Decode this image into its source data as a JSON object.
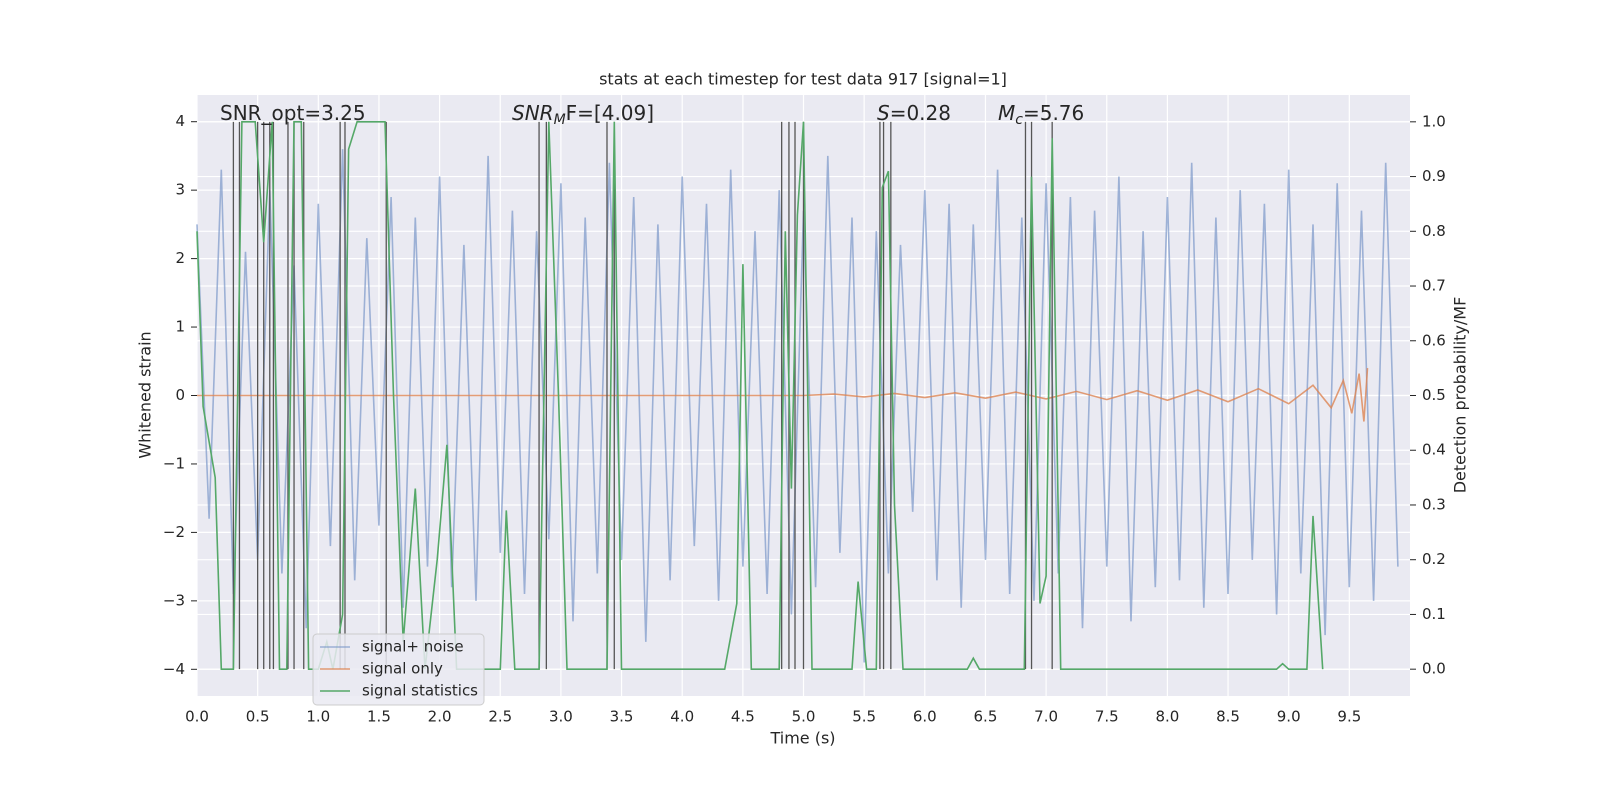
{
  "chart_data": {
    "type": "line",
    "title": "stats at each timestep for test data 917 [signal=1]",
    "xlabel": "Time (s)",
    "ylabel": "Whitened strain",
    "y2label": "Detection probability/MF",
    "xlim": [
      0,
      10
    ],
    "ylim": [
      -4.39,
      4.39
    ],
    "y2lim": [
      -0.049,
      1.049
    ],
    "xticks": [
      {
        "value": 0,
        "label": "0.0"
      },
      0.5,
      {
        "value": 1,
        "label": "1.0"
      },
      1.5,
      {
        "value": 2,
        "label": "2.0"
      },
      2.5,
      {
        "value": 3,
        "label": "3.0"
      },
      3.5,
      {
        "value": 4,
        "label": "4.0"
      },
      4.5,
      {
        "value": 5,
        "label": "5.0"
      },
      5.5,
      {
        "value": 6,
        "label": "6.0"
      },
      6.5,
      {
        "value": 7,
        "label": "7.0"
      },
      7.5,
      {
        "value": 8,
        "label": "8.0"
      },
      8.5,
      {
        "value": 9,
        "label": "9.0"
      },
      9.5
    ],
    "yticks": [
      {
        "value": -4,
        "label": "−4"
      },
      {
        "value": -3,
        "label": "−3"
      },
      {
        "value": -2,
        "label": "−2"
      },
      {
        "value": -1,
        "label": "−1"
      },
      0,
      1,
      2,
      3,
      4
    ],
    "y2ticks": [
      {
        "value": 0,
        "label": "0.0"
      },
      0.1,
      0.2,
      0.3,
      0.4,
      0.5,
      0.6,
      0.7,
      0.8,
      0.9,
      {
        "value": 1,
        "label": "1.0"
      }
    ],
    "grid": true,
    "legend": "lower left",
    "annotations": [
      {
        "text": "SNR_opt=3.25"
      },
      {
        "text": "SNR",
        "sub": "M",
        "rest": "F=[4.09]"
      },
      {
        "text": "S",
        "rest": "=0.28"
      },
      {
        "text": "M",
        "sub": "c",
        "rest": "=5.76"
      }
    ],
    "vlines": {
      "color": "#555555",
      "x": [
        0.3,
        0.35,
        0.5,
        0.55,
        0.6,
        0.63,
        0.75,
        0.8,
        0.88,
        1.18,
        1.22,
        1.56,
        2.82,
        2.88,
        3.38,
        3.44,
        4.82,
        4.88,
        4.93,
        5.0,
        5.63,
        5.66,
        5.72,
        6.83,
        6.88,
        7.05
      ]
    },
    "series": [
      {
        "name": "signal+ noise",
        "color": "#7b97c9",
        "opacity": 0.7,
        "x": [
          0.0,
          0.1,
          0.2,
          0.3,
          0.4,
          0.5,
          0.6,
          0.7,
          0.8,
          0.9,
          1.0,
          1.1,
          1.2,
          1.3,
          1.4,
          1.5,
          1.6,
          1.7,
          1.8,
          1.9,
          2.0,
          2.1,
          2.2,
          2.3,
          2.4,
          2.5,
          2.6,
          2.7,
          2.8,
          2.9,
          3.0,
          3.1,
          3.2,
          3.3,
          3.4,
          3.5,
          3.6,
          3.7,
          3.8,
          3.9,
          4.0,
          4.1,
          4.2,
          4.3,
          4.4,
          4.5,
          4.6,
          4.7,
          4.8,
          4.9,
          5.0,
          5.1,
          5.2,
          5.3,
          5.4,
          5.5,
          5.6,
          5.7,
          5.8,
          5.9,
          6.0,
          6.1,
          6.2,
          6.3,
          6.4,
          6.5,
          6.6,
          6.7,
          6.8,
          6.9,
          7.0,
          7.1,
          7.2,
          7.3,
          7.4,
          7.5,
          7.6,
          7.7,
          7.8,
          7.9,
          8.0,
          8.1,
          8.2,
          8.3,
          8.4,
          8.5,
          8.6,
          8.7,
          8.8,
          8.9,
          9.0,
          9.1,
          9.2,
          9.3,
          9.4,
          9.5,
          9.6,
          9.7,
          9.8,
          9.9
        ],
        "values": [
          2.5,
          -1.8,
          3.3,
          -2.9,
          2.1,
          -2.4,
          3.0,
          -2.6,
          1.9,
          -3.4,
          2.8,
          -2.2,
          3.6,
          -2.7,
          2.3,
          -1.9,
          2.9,
          -3.1,
          2.6,
          -2.5,
          3.2,
          -2.8,
          2.2,
          -3.0,
          3.5,
          -2.3,
          2.7,
          -2.9,
          2.4,
          -2.1,
          3.1,
          -3.3,
          2.6,
          -2.6,
          3.4,
          -2.4,
          2.9,
          -3.6,
          2.5,
          -2.7,
          3.2,
          -2.2,
          2.8,
          -3.0,
          3.3,
          -2.5,
          2.4,
          -2.9,
          3.0,
          -3.2,
          2.7,
          -2.8,
          3.5,
          -2.3,
          2.6,
          -3.9,
          2.4,
          -2.6,
          2.2,
          -1.7,
          3.0,
          -2.7,
          2.8,
          -3.1,
          2.5,
          -2.4,
          3.3,
          -2.9,
          2.6,
          -3.0,
          3.1,
          -2.6,
          2.9,
          -3.4,
          2.7,
          -2.5,
          3.2,
          -3.3,
          2.4,
          -2.8,
          2.9,
          -2.7,
          3.4,
          -3.1,
          2.6,
          -2.9,
          3.0,
          -2.4,
          2.8,
          -3.2,
          3.3,
          -2.6,
          2.5,
          -3.5,
          3.1,
          -2.8,
          2.7,
          -3.0,
          3.4,
          -2.5
        ]
      },
      {
        "name": "signal only",
        "color": "#dd8452",
        "opacity": 0.8,
        "x": [
          0,
          5,
          5.25,
          5.5,
          5.75,
          6,
          6.25,
          6.5,
          6.75,
          7,
          7.25,
          7.5,
          7.75,
          8,
          8.25,
          8.5,
          8.75,
          9,
          9.2,
          9.35,
          9.45,
          9.52,
          9.58,
          9.62,
          9.65
        ],
        "values": [
          0,
          0,
          0.02,
          -0.02,
          0.03,
          -0.03,
          0.04,
          -0.04,
          0.05,
          -0.05,
          0.06,
          -0.06,
          0.07,
          -0.07,
          0.08,
          -0.09,
          0.1,
          -0.12,
          0.15,
          -0.18,
          0.22,
          -0.26,
          0.32,
          -0.38,
          0.4
        ]
      },
      {
        "name": "signal statistics",
        "color": "#55a868",
        "opacity": 1,
        "axis": "y2",
        "x": [
          0,
          0.05,
          0.15,
          0.2,
          0.3,
          0.37,
          0.48,
          0.55,
          0.62,
          0.68,
          0.74,
          0.8,
          0.86,
          0.92,
          1.0,
          1.07,
          1.12,
          1.2,
          1.25,
          1.32,
          1.55,
          1.62,
          1.7,
          1.8,
          1.88,
          1.98,
          2.06,
          2.14,
          2.5,
          2.55,
          2.62,
          2.82,
          2.9,
          2.98,
          3.05,
          3.38,
          3.44,
          3.5,
          4.35,
          4.45,
          4.5,
          4.57,
          4.8,
          4.85,
          4.9,
          4.95,
          5.0,
          5.07,
          5.4,
          5.45,
          5.52,
          5.6,
          5.65,
          5.7,
          5.75,
          5.82,
          6.35,
          6.4,
          6.45,
          6.82,
          6.88,
          6.95,
          7.0,
          7.05,
          7.12,
          8.9,
          8.95,
          9.0,
          9.15,
          9.2,
          9.28
        ],
        "values": [
          0.8,
          0.48,
          0.35,
          0,
          0,
          1,
          1,
          0.78,
          1,
          0,
          0,
          1,
          1,
          0,
          0,
          0.05,
          0,
          0.1,
          0.95,
          1,
          1,
          0.5,
          0.05,
          0.33,
          0,
          0.2,
          0.41,
          0,
          0,
          0.29,
          0,
          0,
          1,
          0.5,
          0,
          0,
          1,
          0,
          0,
          0.12,
          0.74,
          0,
          0,
          0.8,
          0.33,
          0.83,
          1,
          0,
          0,
          0.16,
          0,
          0,
          0.88,
          0.91,
          0.3,
          0,
          0,
          0.02,
          0,
          0,
          0.9,
          0.12,
          0.17,
          0.97,
          0,
          0,
          0.01,
          0,
          0,
          0.28,
          0
        ]
      }
    ]
  }
}
